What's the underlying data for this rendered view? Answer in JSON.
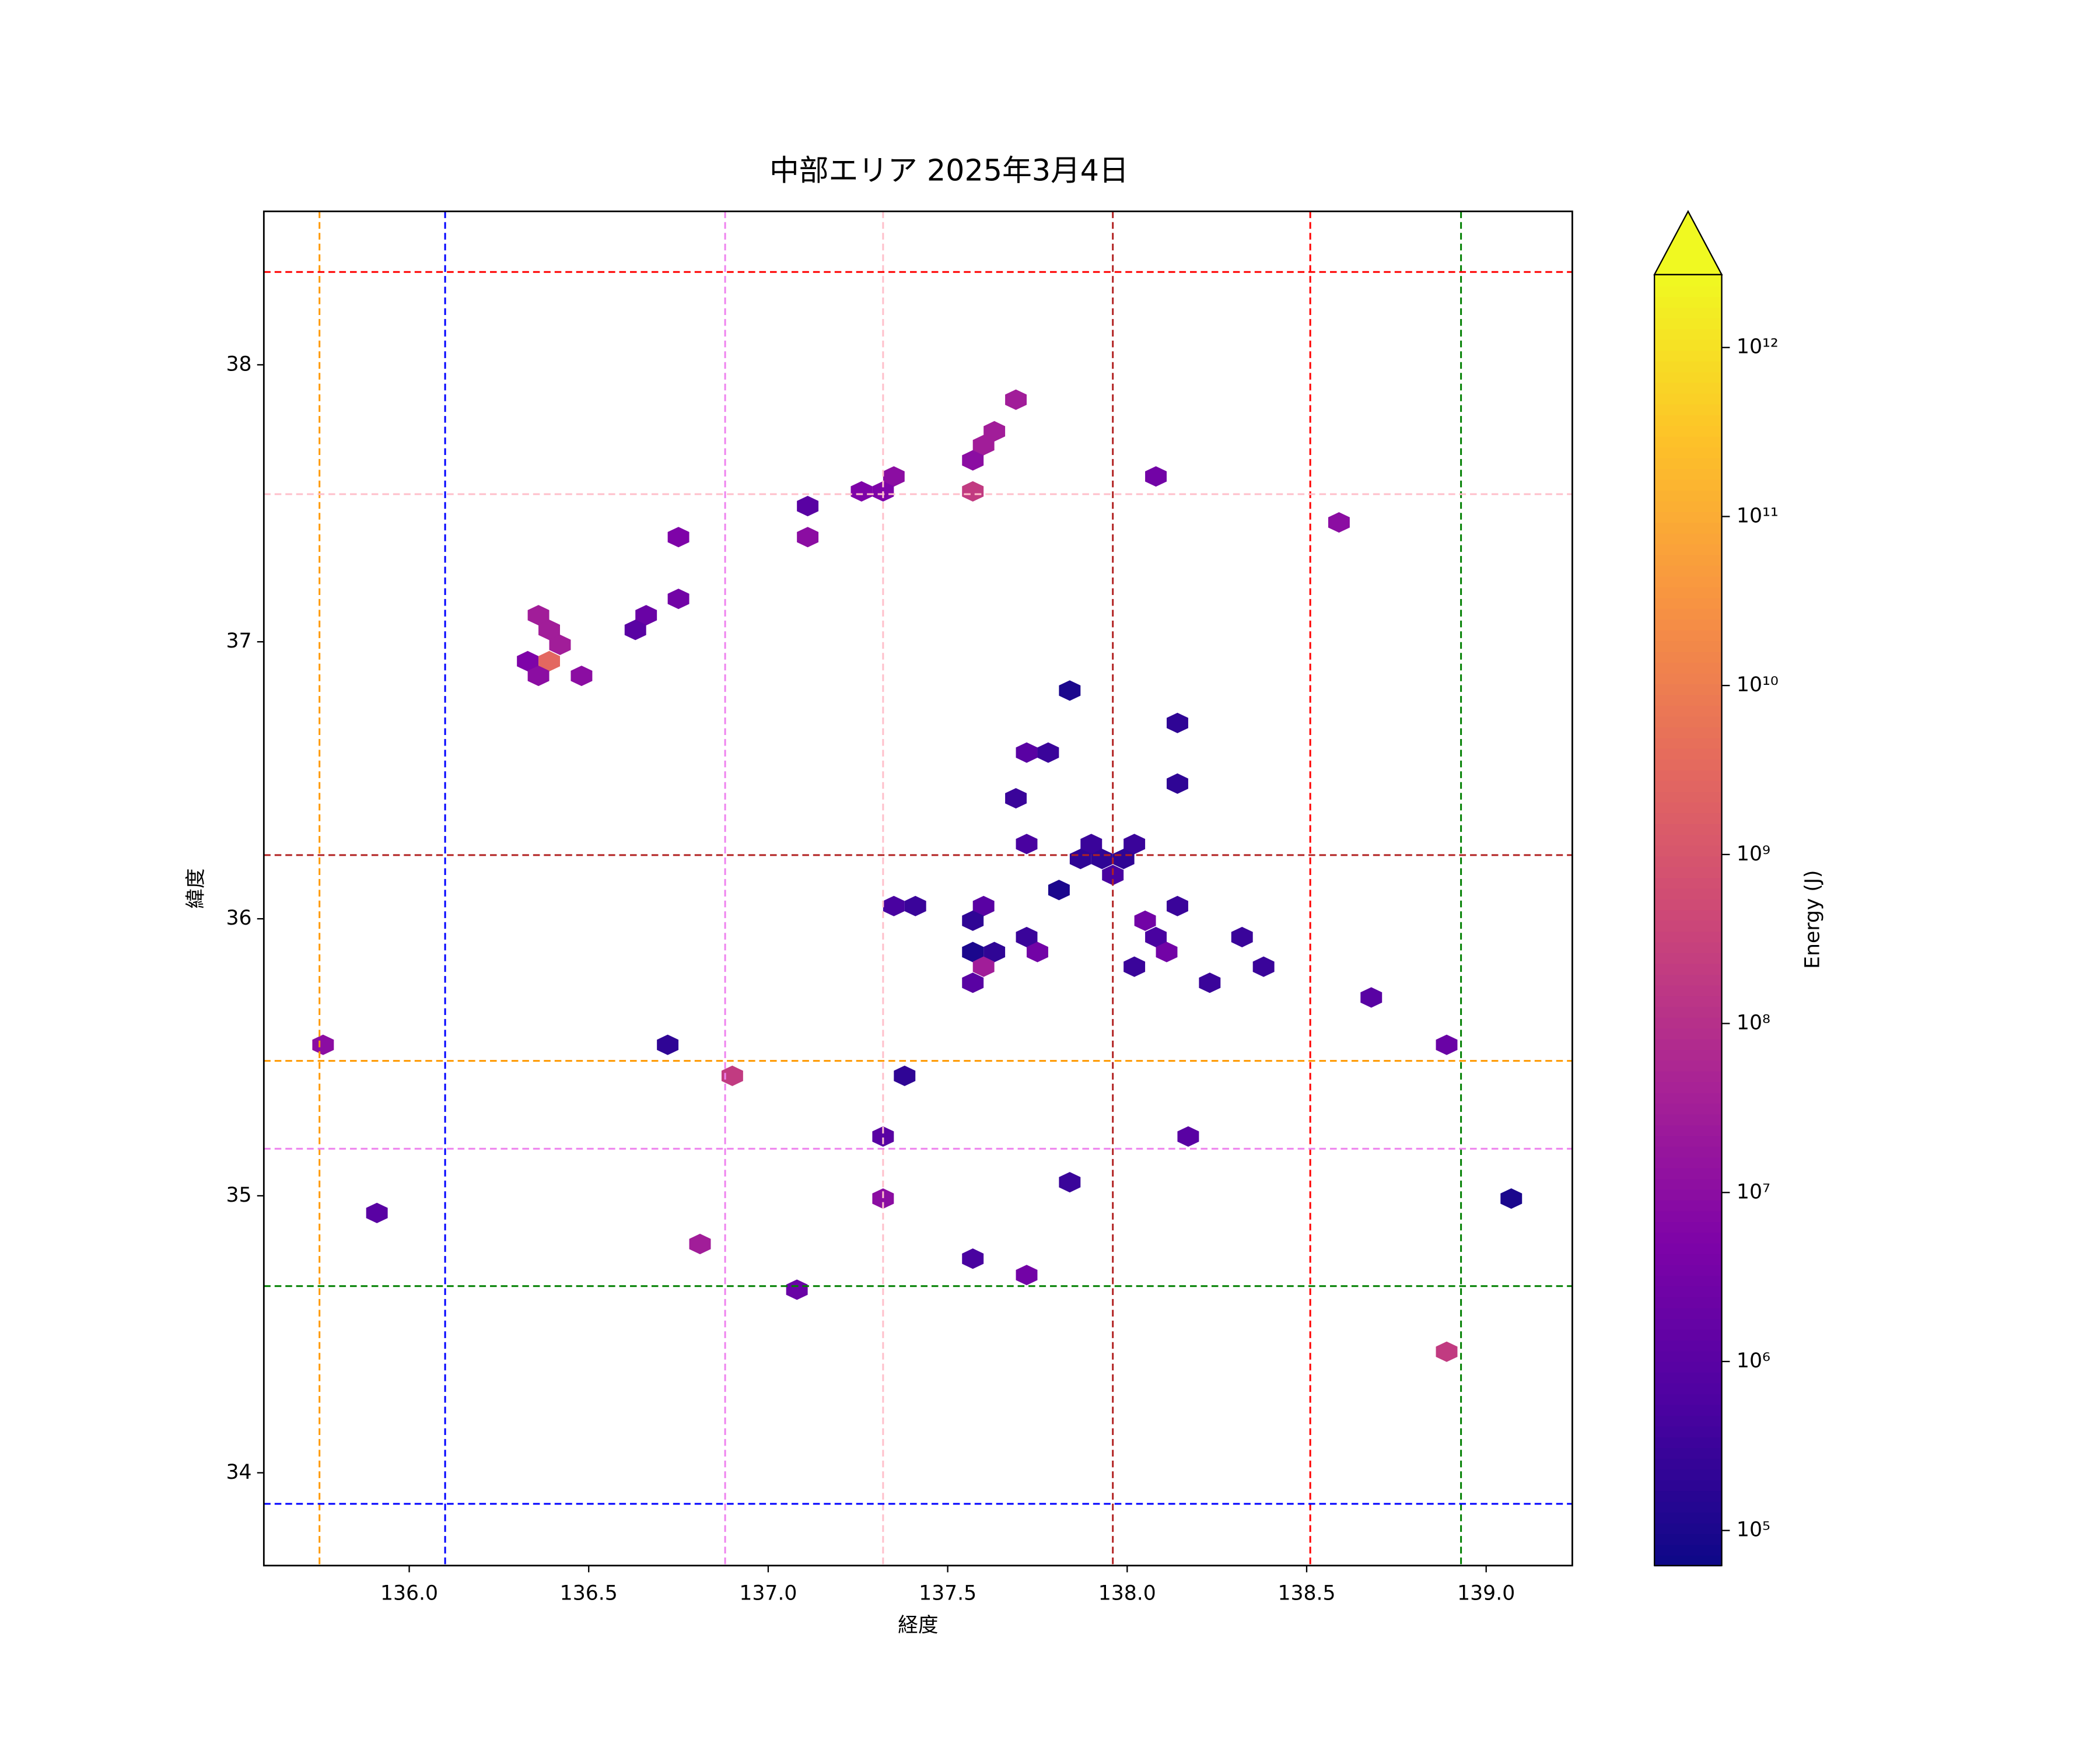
{
  "chart_data": {
    "type": "hexbin",
    "title": "中部エリア 2025年3月4日",
    "xlabel": "経度",
    "ylabel": "緯度",
    "colorbar_label": "Energy (J)",
    "colormap": "plasma",
    "color_scale": "log",
    "colorbar_extend": "max",
    "xlim": [
      135.595,
      139.24
    ],
    "ylim": [
      33.665,
      38.554
    ],
    "xticks": [
      {
        "value": 136,
        "label": "136.0"
      },
      {
        "value": 136.5,
        "label": "136.5"
      },
      {
        "value": 137,
        "label": "137.0"
      },
      {
        "value": 137.5,
        "label": "137.5"
      },
      {
        "value": 138,
        "label": "138.0"
      },
      {
        "value": 138.5,
        "label": "138.5"
      },
      {
        "value": 139,
        "label": "139.0"
      }
    ],
    "yticks": [
      34,
      35,
      36,
      37,
      38
    ],
    "clim": [
      62000,
      2700000000000
    ],
    "cticks": [
      {
        "value": 100000,
        "label": "10⁵"
      },
      {
        "value": 1000000,
        "label": "10⁶"
      },
      {
        "value": 10000000,
        "label": "10⁷"
      },
      {
        "value": 100000000,
        "label": "10⁸"
      },
      {
        "value": 1000000000,
        "label": "10⁹"
      },
      {
        "value": 10000000000,
        "label": "10¹⁰"
      },
      {
        "value": 100000000000,
        "label": "10¹¹"
      },
      {
        "value": 1000000000000,
        "label": "10¹²"
      }
    ],
    "vlines": [
      {
        "x": 135.75,
        "color": "#ff9900"
      },
      {
        "x": 136.1,
        "color": "#0000ff"
      },
      {
        "x": 136.88,
        "color": "#ee82ee"
      },
      {
        "x": 137.32,
        "color": "#ffc0cb"
      },
      {
        "x": 137.96,
        "color": "#b22222"
      },
      {
        "x": 138.51,
        "color": "#ff0000"
      },
      {
        "x": 138.93,
        "color": "#008000"
      }
    ],
    "hlines": [
      {
        "y": 38.335,
        "color": "#ff0000"
      },
      {
        "y": 37.533,
        "color": "#ffc0cb"
      },
      {
        "y": 36.23,
        "color": "#b22222"
      },
      {
        "y": 35.487,
        "color": "#ff9900"
      },
      {
        "y": 35.17,
        "color": "#ee82ee"
      },
      {
        "y": 34.674,
        "color": "#008000"
      },
      {
        "y": 33.888,
        "color": "#0000ff"
      }
    ],
    "x": [
      137.69,
      137.63,
      137.6,
      137.57,
      137.57,
      137.35,
      137.26,
      137.32,
      138.08,
      137.11,
      137.11,
      136.75,
      138.59,
      136.75,
      136.66,
      136.63,
      136.36,
      136.39,
      136.42,
      136.33,
      136.39,
      136.36,
      136.48,
      137.84,
      138.14,
      137.72,
      137.78,
      138.14,
      137.69,
      137.72,
      137.9,
      138.02,
      137.87,
      137.93,
      137.99,
      137.96,
      137.81,
      137.35,
      137.41,
      137.6,
      138.14,
      137.57,
      138.05,
      137.72,
      138.08,
      138.32,
      137.57,
      137.63,
      137.75,
      138.11,
      137.6,
      138.02,
      138.38,
      137.57,
      138.23,
      138.68,
      135.76,
      136.72,
      138.89,
      136.9,
      137.38,
      137.32,
      138.17,
      137.84,
      137.32,
      139.07,
      135.91,
      136.81,
      137.57,
      137.72,
      137.08,
      138.89
    ],
    "y": [
      37.874,
      37.76,
      37.71,
      37.655,
      37.543,
      37.597,
      37.543,
      37.543,
      37.597,
      37.49,
      37.378,
      37.378,
      37.431,
      37.155,
      37.096,
      37.043,
      37.096,
      37.043,
      36.989,
      36.93,
      36.93,
      36.877,
      36.877,
      36.824,
      36.707,
      36.6,
      36.6,
      36.488,
      36.435,
      36.27,
      36.27,
      36.27,
      36.216,
      36.216,
      36.216,
      36.158,
      36.104,
      36.046,
      36.046,
      36.046,
      36.046,
      35.993,
      35.993,
      35.934,
      35.934,
      35.934,
      35.88,
      35.88,
      35.88,
      35.88,
      35.827,
      35.827,
      35.827,
      35.769,
      35.769,
      35.716,
      35.545,
      35.545,
      35.545,
      35.433,
      35.433,
      35.214,
      35.214,
      35.049,
      34.99,
      34.99,
      34.938,
      34.826,
      34.773,
      34.714,
      34.661,
      34.437
    ],
    "values": [
      30000000,
      30000000,
      30000000,
      10000000,
      200000000,
      10000000,
      5000000,
      5000000,
      3000000,
      1000000,
      10000000,
      5000000,
      10000000,
      3000000,
      2000000,
      1000000,
      30000000,
      30000000,
      30000000,
      5000000,
      3000000000,
      10000000,
      10000000,
      100000,
      200000,
      1000000,
      300000,
      200000,
      300000,
      500000,
      300000,
      300000,
      200000,
      200000,
      200000,
      500000,
      100000,
      500000,
      300000,
      1000000,
      300000,
      200000,
      3000000,
      300000,
      500000,
      300000,
      100000,
      200000,
      3000000,
      3000000,
      30000000,
      300000,
      300000,
      1000000,
      300000,
      1000000,
      10000000,
      200000,
      2000000,
      200000000,
      200000,
      1000000,
      1000000,
      300000,
      10000000,
      100000,
      1000000,
      30000000,
      500000,
      3000000,
      2000000,
      200000000
    ]
  }
}
